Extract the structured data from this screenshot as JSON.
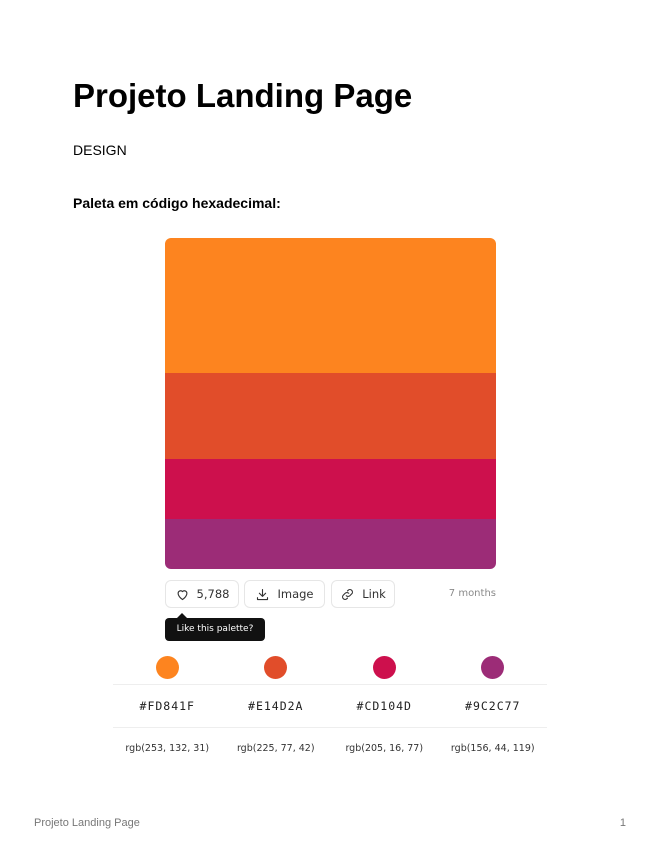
{
  "document": {
    "title": "Projeto Landing Page",
    "section_label": "DESIGN",
    "subheading": "Paleta em código hexadecimal:"
  },
  "palette": {
    "colors": [
      {
        "hex": "#FD841F",
        "rgb": "rgb(253, 132, 31)"
      },
      {
        "hex": "#E14D2A",
        "rgb": "rgb(225, 77, 42)"
      },
      {
        "hex": "#CD104D",
        "rgb": "rgb(205, 16, 77)"
      },
      {
        "hex": "#9C2C77",
        "rgb": "rgb(156, 44, 119)"
      }
    ],
    "actions": {
      "likes": "5,788",
      "image_label": "Image",
      "link_label": "Link",
      "age": "7 months"
    },
    "tooltip": "Like this palette?"
  },
  "footer": {
    "title": "Projeto Landing Page",
    "page_number": "1"
  }
}
